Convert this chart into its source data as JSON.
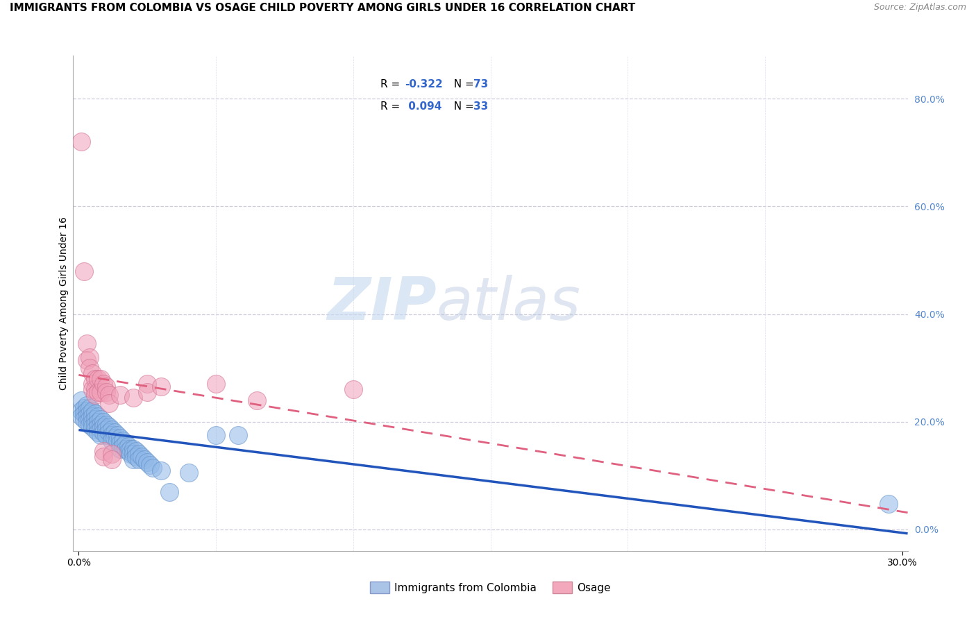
{
  "title": "IMMIGRANTS FROM COLOMBIA VS OSAGE CHILD POVERTY AMONG GIRLS UNDER 16 CORRELATION CHART",
  "source": "Source: ZipAtlas.com",
  "ylabel": "Child Poverty Among Girls Under 16",
  "right_yticks": [
    0.0,
    0.2,
    0.4,
    0.6,
    0.8
  ],
  "right_yticklabels": [
    "0.0%",
    "20.0%",
    "40.0%",
    "60.0%",
    "80.0%"
  ],
  "xlim": [
    -0.002,
    0.302
  ],
  "ylim": [
    -0.04,
    0.88
  ],
  "watermark_zip": "ZIP",
  "watermark_atlas": "atlas",
  "colombia_color": "#90b8e8",
  "colombia_edge": "#6090c8",
  "osage_color": "#f0a0b8",
  "osage_edge": "#d07090",
  "colombia_line_color": "#2255bb",
  "osage_line_color": "#e06080",
  "colombia_points": [
    [
      0.001,
      0.24
    ],
    [
      0.001,
      0.22
    ],
    [
      0.001,
      0.21
    ],
    [
      0.002,
      0.225
    ],
    [
      0.002,
      0.215
    ],
    [
      0.002,
      0.205
    ],
    [
      0.003,
      0.23
    ],
    [
      0.003,
      0.22
    ],
    [
      0.003,
      0.21
    ],
    [
      0.003,
      0.2
    ],
    [
      0.004,
      0.225
    ],
    [
      0.004,
      0.215
    ],
    [
      0.004,
      0.205
    ],
    [
      0.004,
      0.195
    ],
    [
      0.005,
      0.22
    ],
    [
      0.005,
      0.21
    ],
    [
      0.005,
      0.2
    ],
    [
      0.005,
      0.19
    ],
    [
      0.006,
      0.215
    ],
    [
      0.006,
      0.205
    ],
    [
      0.006,
      0.195
    ],
    [
      0.006,
      0.185
    ],
    [
      0.007,
      0.21
    ],
    [
      0.007,
      0.2
    ],
    [
      0.007,
      0.19
    ],
    [
      0.007,
      0.18
    ],
    [
      0.008,
      0.205
    ],
    [
      0.008,
      0.195
    ],
    [
      0.008,
      0.185
    ],
    [
      0.008,
      0.175
    ],
    [
      0.009,
      0.2
    ],
    [
      0.009,
      0.19
    ],
    [
      0.009,
      0.18
    ],
    [
      0.01,
      0.195
    ],
    [
      0.01,
      0.185
    ],
    [
      0.01,
      0.175
    ],
    [
      0.011,
      0.19
    ],
    [
      0.011,
      0.18
    ],
    [
      0.012,
      0.185
    ],
    [
      0.012,
      0.175
    ],
    [
      0.012,
      0.165
    ],
    [
      0.013,
      0.18
    ],
    [
      0.013,
      0.17
    ],
    [
      0.014,
      0.175
    ],
    [
      0.014,
      0.165
    ],
    [
      0.015,
      0.17
    ],
    [
      0.015,
      0.16
    ],
    [
      0.015,
      0.15
    ],
    [
      0.016,
      0.165
    ],
    [
      0.016,
      0.155
    ],
    [
      0.017,
      0.16
    ],
    [
      0.017,
      0.15
    ],
    [
      0.018,
      0.155
    ],
    [
      0.018,
      0.145
    ],
    [
      0.019,
      0.15
    ],
    [
      0.019,
      0.14
    ],
    [
      0.02,
      0.15
    ],
    [
      0.02,
      0.14
    ],
    [
      0.02,
      0.13
    ],
    [
      0.021,
      0.145
    ],
    [
      0.021,
      0.135
    ],
    [
      0.022,
      0.14
    ],
    [
      0.022,
      0.13
    ],
    [
      0.023,
      0.135
    ],
    [
      0.024,
      0.13
    ],
    [
      0.025,
      0.125
    ],
    [
      0.026,
      0.12
    ],
    [
      0.027,
      0.115
    ],
    [
      0.03,
      0.11
    ],
    [
      0.033,
      0.07
    ],
    [
      0.04,
      0.105
    ],
    [
      0.05,
      0.175
    ],
    [
      0.058,
      0.175
    ],
    [
      0.295,
      0.048
    ]
  ],
  "osage_points": [
    [
      0.001,
      0.72
    ],
    [
      0.002,
      0.48
    ],
    [
      0.003,
      0.345
    ],
    [
      0.003,
      0.315
    ],
    [
      0.004,
      0.32
    ],
    [
      0.004,
      0.3
    ],
    [
      0.005,
      0.29
    ],
    [
      0.005,
      0.27
    ],
    [
      0.005,
      0.26
    ],
    [
      0.006,
      0.28
    ],
    [
      0.006,
      0.26
    ],
    [
      0.006,
      0.25
    ],
    [
      0.007,
      0.28
    ],
    [
      0.007,
      0.255
    ],
    [
      0.008,
      0.28
    ],
    [
      0.008,
      0.255
    ],
    [
      0.009,
      0.27
    ],
    [
      0.009,
      0.145
    ],
    [
      0.009,
      0.135
    ],
    [
      0.01,
      0.265
    ],
    [
      0.01,
      0.255
    ],
    [
      0.011,
      0.25
    ],
    [
      0.011,
      0.235
    ],
    [
      0.012,
      0.14
    ],
    [
      0.012,
      0.13
    ],
    [
      0.015,
      0.25
    ],
    [
      0.02,
      0.245
    ],
    [
      0.025,
      0.27
    ],
    [
      0.025,
      0.255
    ],
    [
      0.03,
      0.265
    ],
    [
      0.05,
      0.27
    ],
    [
      0.065,
      0.24
    ],
    [
      0.1,
      0.26
    ]
  ],
  "legend_box_color": "#f8f8ff",
  "legend_border_color": "#ccccdd"
}
